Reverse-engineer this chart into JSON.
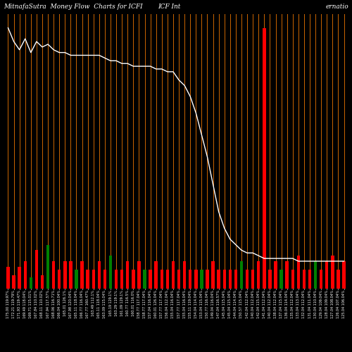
{
  "title_left": "MitnafaSutra  Money Flow  Charts for ICFI",
  "title_mid": "ICF Int",
  "title_right": "ernatio",
  "background_color": "#000000",
  "bar_colors": [
    "red",
    "red",
    "red",
    "red",
    "green",
    "red",
    "red",
    "green",
    "red",
    "red",
    "red",
    "red",
    "green",
    "red",
    "red",
    "red",
    "red",
    "red",
    "green",
    "red",
    "red",
    "red",
    "red",
    "red",
    "green",
    "red",
    "red",
    "red",
    "red",
    "red",
    "red",
    "red",
    "red",
    "red",
    "green",
    "red",
    "red",
    "red",
    "red",
    "red",
    "red",
    "green",
    "red",
    "red",
    "red",
    "red",
    "red",
    "red",
    "green",
    "red",
    "red",
    "red",
    "red",
    "red",
    "green",
    "red",
    "red",
    "red",
    "red",
    "red"
  ],
  "bar_heights": [
    8,
    5,
    8,
    10,
    4,
    14,
    5,
    16,
    10,
    7,
    10,
    10,
    7,
    10,
    7,
    7,
    10,
    7,
    12,
    7,
    7,
    10,
    7,
    10,
    7,
    7,
    10,
    7,
    7,
    10,
    7,
    10,
    7,
    7,
    7,
    7,
    10,
    7,
    7,
    7,
    7,
    10,
    7,
    7,
    10,
    95,
    7,
    10,
    7,
    10,
    7,
    12,
    7,
    7,
    10,
    7,
    10,
    12,
    7,
    10
  ],
  "n_bars": 60,
  "grid_color": "#cc6600",
  "white_line_color": "#ffffff",
  "price_line": [
    95,
    90,
    87,
    91,
    86,
    90,
    88,
    89,
    87,
    86,
    86,
    85,
    85,
    85,
    85,
    85,
    85,
    84,
    83,
    83,
    82,
    82,
    81,
    81,
    81,
    81,
    80,
    80,
    79,
    79,
    76,
    74,
    70,
    64,
    56,
    48,
    38,
    28,
    22,
    18,
    16,
    14,
    13,
    13,
    12,
    11,
    11,
    11,
    11,
    11,
    11,
    10,
    10,
    10,
    10,
    10,
    10,
    10,
    10,
    10
  ],
  "xlabel_fontsize": 3.5,
  "title_fontsize": 6.5,
  "x_labels": [
    "175.00 119.97%\n175.00 19.97%",
    "172.21 119.79%\n172.21 19.79%",
    "171.93 119.47%\n171.93 19.47%",
    "169.49 118.04%\n169.49 18.04%",
    "169.71 115.01%\n169.71 15.01%",
    "167.84 110.02%\n167.84 10.02%",
    "168.11 110.02%\n168.11 10.02%",
    "167.94 117.57%\n167.94 17.57%",
    "168.06 116.71%\n168.06 16.71%",
    "166.04 100.04%\n166.04 0.04%",
    "165.01 126.1%\n165.01 26.1%",
    "167.98 120.04%\n167.98 20.04%",
    "165.11 118.04%\n165.11 18.04%",
    "166.77 116.04%\n166.77 16.04%",
    "167.77 160.47%\n167.77 60.47%",
    "163.49 112.1%\n163.49 12.1%",
    "165.11 118.04%\n165.11 18.04%",
    "163.09 115.04%\n163.09 15.04%",
    "165.19 129.1%\n165.19 29.1%",
    "163.29 119.1%\n163.29 19.1%",
    "161.09 129.1%\n161.09 29.1%",
    "160.77 116.5%\n160.77 16.5%",
    "160.01 116.0%\n160.01 16.0%",
    "158.77 117.04%\n158.77 17.04%",
    "158.77 117.04%\n158.77 17.04%",
    "157.04 116.04%\n157.04 16.04%",
    "160.01 126.04%\n160.01 26.04%",
    "157.77 117.04%\n157.77 17.04%",
    "156.04 112.04%\n156.04 12.04%",
    "155.04 116.04%\n155.04 16.04%",
    "157.77 117.04%\n157.77 17.04%",
    "155.04 116.04%\n155.04 16.04%",
    "155.11 119.04%\n155.11 19.04%",
    "154.04 114.04%\n154.04 14.04%",
    "153.04 115.04%\n153.04 15.04%",
    "150.77 116.04%\n150.77 16.04%",
    "149.04 116.04%\n149.04 16.04%",
    "147.04 116.57%\n147.04 16.57%",
    "145.04 115.04%\n145.04 15.04%",
    "145.04 115.04%\n145.04 15.04%",
    "144.04 114.04%\n144.04 14.04%",
    "150.57 115.04%\n150.57 15.04%",
    "142.04 112.04%\n142.04 12.04%",
    "140.04 112.04%\n140.04 12.04%",
    "142.04 115.04%\n142.04 15.04%",
    "141.04 112.04%\n141.04 12.04%",
    "140.04 112.04%\n140.04 12.04%",
    "138.04 112.04%\n138.04 12.04%",
    "137.04 115.04%\n137.04 15.04%",
    "136.04 114.04%\n136.04 14.04%",
    "135.04 112.04%\n135.04 12.04%",
    "133.04 113.04%\n133.04 13.04%",
    "132.04 112.04%\n132.04 12.04%",
    "131.04 111.04%\n131.04 11.04%",
    "130.04 110.04%\n130.04 10.04%",
    "129.04 109.04%\n129.04 9.04%",
    "128.04 109.04%\n128.04 9.04%",
    "127.04 108.04%\n127.04 8.04%",
    "126.04 107.04%\n126.04 7.04%",
    "125.04 106.04%\n125.04 6.04%"
  ]
}
